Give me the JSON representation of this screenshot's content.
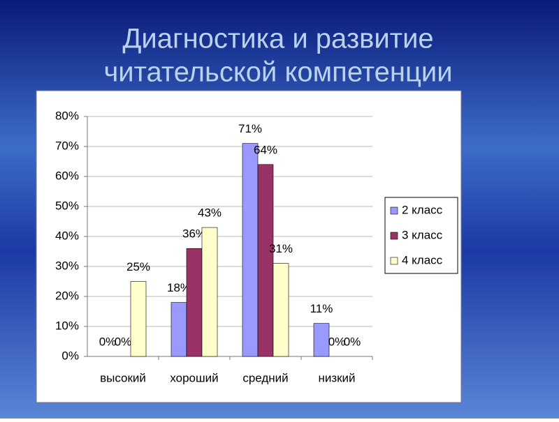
{
  "slide": {
    "title_lines": [
      "Диагностика и развитие",
      "читательской компетенции"
    ]
  },
  "chart_data": {
    "type": "bar",
    "categories": [
      "высокий",
      "хороший",
      "средний",
      "низкий"
    ],
    "series": [
      {
        "name": "2 класс",
        "color": "#9999ff",
        "values": [
          0,
          18,
          71,
          11
        ],
        "value_labels": [
          "0%",
          "18%",
          "71%",
          "11%"
        ]
      },
      {
        "name": "3 класс",
        "color": "#993366",
        "values": [
          0,
          36,
          64,
          0
        ],
        "value_labels": [
          "0%",
          "36%",
          "64%",
          "0%"
        ]
      },
      {
        "name": "4 класс",
        "color": "#ffffcc",
        "values": [
          25,
          43,
          31,
          0
        ],
        "value_labels": [
          "25%",
          "43%",
          "31%",
          "0%"
        ]
      }
    ],
    "ylim": [
      0,
      80
    ],
    "yticks": [
      {
        "value": 0,
        "label": "0%"
      },
      {
        "value": 10,
        "label": "10%"
      },
      {
        "value": 20,
        "label": "20%"
      },
      {
        "value": 30,
        "label": "30%"
      },
      {
        "value": 40,
        "label": "40%"
      },
      {
        "value": 50,
        "label": "50%"
      },
      {
        "value": 60,
        "label": "60%"
      },
      {
        "value": 70,
        "label": "70%"
      },
      {
        "value": 80,
        "label": "80%"
      }
    ],
    "grid": true,
    "legend": "right"
  }
}
